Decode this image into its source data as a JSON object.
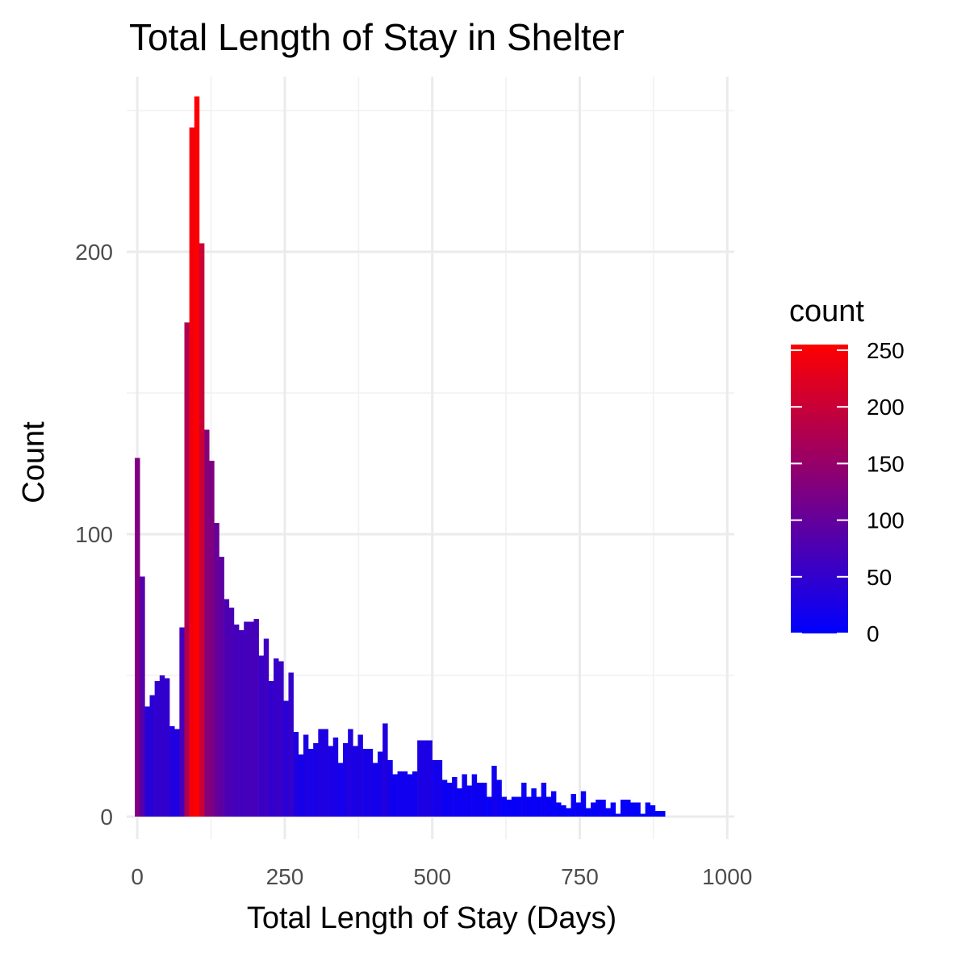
{
  "chart_data": {
    "type": "bar",
    "title": "Total Length of Stay in Shelter",
    "xlabel": "Total Length of Stay (Days)",
    "ylabel": "Count",
    "bin_width": 8.4,
    "x_start": -4.2,
    "xlim": [
      -18,
      1012
    ],
    "ylim": [
      -8,
      262
    ],
    "x_ticks": [
      0,
      250,
      500,
      750,
      1000
    ],
    "y_ticks": [
      0,
      100,
      200
    ],
    "grid": true,
    "values": [
      127,
      85,
      39,
      43,
      48,
      50,
      49,
      32,
      31,
      67,
      175,
      244,
      255,
      203,
      137,
      126,
      104,
      92,
      77,
      74,
      68,
      66,
      69,
      69,
      70,
      57,
      63,
      48,
      56,
      55,
      41,
      51,
      30,
      22,
      29,
      24,
      26,
      31,
      31,
      25,
      28,
      19,
      26,
      31,
      25,
      29,
      24,
      24,
      19,
      23,
      33,
      20,
      15,
      16,
      16,
      15,
      16,
      27,
      27,
      27,
      20,
      20,
      13,
      12,
      14,
      10,
      15,
      11,
      15,
      12,
      12,
      7,
      18,
      13,
      7,
      6,
      7,
      7,
      12,
      7,
      10,
      7,
      12,
      7,
      9,
      5,
      4,
      3,
      8,
      5,
      9,
      3,
      5,
      6,
      6,
      3,
      5,
      1,
      6,
      6,
      5,
      5,
      1,
      5,
      4,
      2,
      2
    ],
    "color_scale": {
      "title": "count",
      "low_color": "#0000FF",
      "high_color": "#FF0000",
      "range": [
        0,
        255
      ],
      "breaks": [
        0,
        50,
        100,
        150,
        200,
        250
      ]
    }
  }
}
